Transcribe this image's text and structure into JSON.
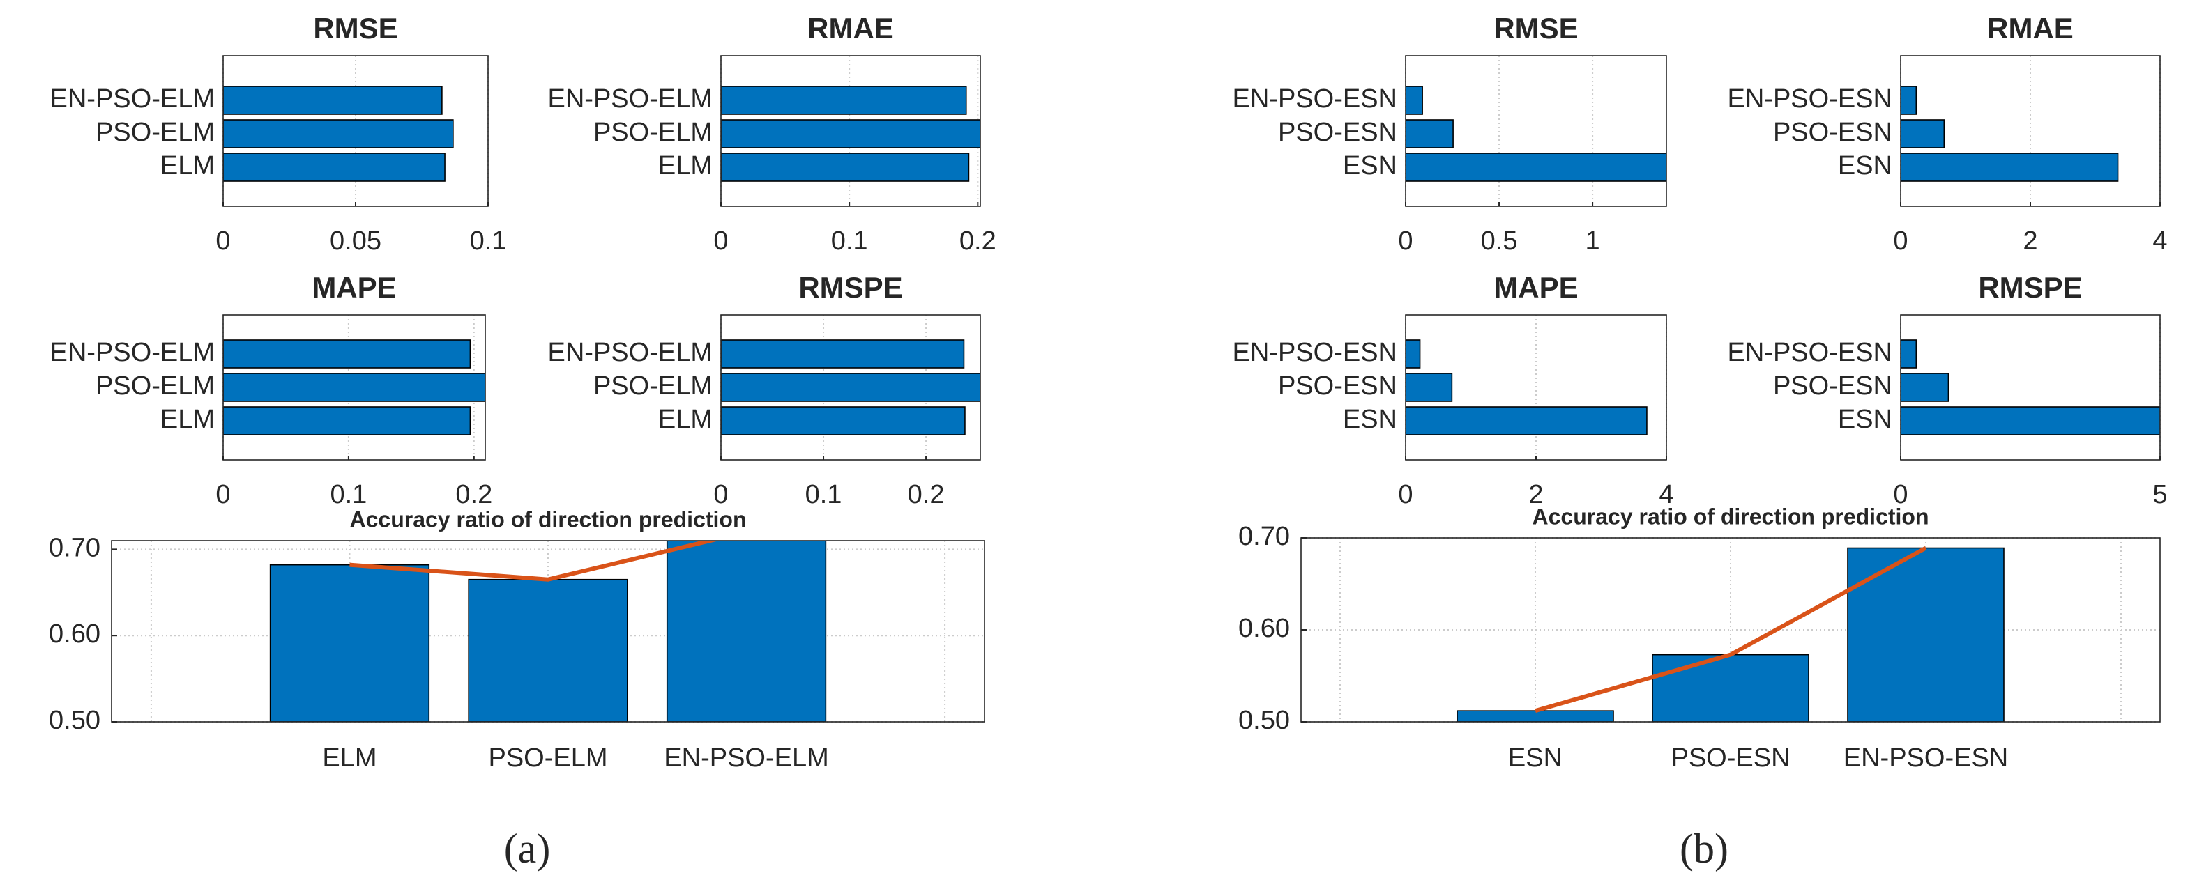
{
  "chart_data": [
    {
      "type": "barh",
      "title": "RMSE",
      "categories": [
        "ELM",
        "PSO-ELM",
        "EN-PSO-ELM"
      ],
      "series": [
        {
          "color": "#0072bd",
          "values": [
            0.0837,
            0.0868,
            0.0826
          ]
        }
      ],
      "xlim": [
        0,
        0.1
      ],
      "xticks": [
        0,
        0.05,
        0.1
      ],
      "grid": true
    },
    {
      "type": "barh",
      "title": "RMAE",
      "categories": [
        "ELM",
        "PSO-ELM",
        "EN-PSO-ELM"
      ],
      "series": [
        {
          "color": "#0072bd",
          "values": [
            0.193,
            0.21,
            0.191
          ]
        }
      ],
      "xlim": [
        0,
        0.202
      ],
      "xticks": [
        0,
        0.1,
        0.2
      ],
      "grid": true
    },
    {
      "type": "barh",
      "title": "MAPE",
      "categories": [
        "ELM",
        "PSO-ELM",
        "EN-PSO-ELM"
      ],
      "series": [
        {
          "color": "#0072bd",
          "values": [
            0.197,
            0.215,
            0.197
          ]
        }
      ],
      "xlim": [
        0,
        0.209
      ],
      "xticks": [
        0,
        0.1,
        0.2
      ],
      "grid": true
    },
    {
      "type": "barh",
      "title": "RMSPE",
      "categories": [
        "ELM",
        "PSO-ELM",
        "EN-PSO-ELM"
      ],
      "series": [
        {
          "color": "#0072bd",
          "values": [
            0.238,
            0.26,
            0.237
          ]
        }
      ],
      "xlim": [
        0,
        0.253
      ],
      "xticks": [
        0,
        0.1,
        0.2
      ],
      "grid": true
    },
    {
      "type": "barline",
      "title": "Accuracy ratio of direction prediction",
      "categories": [
        "ELM",
        "PSO-ELM",
        "EN-PSO-ELM"
      ],
      "series": [
        {
          "color": "#0072bd",
          "kind": "bar",
          "values": [
            0.682,
            0.665,
            0.72
          ]
        },
        {
          "color": "#d95319",
          "kind": "line",
          "values": [
            0.682,
            0.665,
            0.72
          ]
        }
      ],
      "ylim": [
        0.5,
        0.71
      ],
      "yticks": [
        {
          "value": 0.5,
          "label": "0.50"
        },
        {
          "value": 0.6,
          "label": "0.60"
        },
        {
          "value": 0.7,
          "label": "0.70"
        }
      ],
      "grid": true
    },
    {
      "type": "barh",
      "title": "RMSE",
      "categories": [
        "ESN",
        "PSO-ESN",
        "EN-PSO-ESN"
      ],
      "series": [
        {
          "color": "#0072bd",
          "values": [
            1.45,
            0.254,
            0.09
          ]
        }
      ],
      "xlim": [
        0,
        1.395
      ],
      "xticks": [
        0,
        0.5,
        1
      ],
      "grid": true
    },
    {
      "type": "barh",
      "title": "RMAE",
      "categories": [
        "ESN",
        "PSO-ESN",
        "EN-PSO-ESN"
      ],
      "series": [
        {
          "color": "#0072bd",
          "values": [
            3.35,
            0.67,
            0.24
          ]
        }
      ],
      "xlim": [
        0,
        4
      ],
      "xticks": [
        0,
        2,
        4
      ],
      "grid": true
    },
    {
      "type": "barh",
      "title": "MAPE",
      "categories": [
        "ESN",
        "PSO-ESN",
        "EN-PSO-ESN"
      ],
      "series": [
        {
          "color": "#0072bd",
          "values": [
            3.7,
            0.71,
            0.22
          ]
        }
      ],
      "xlim": [
        0,
        4
      ],
      "xticks": [
        0,
        2,
        4
      ],
      "grid": true
    },
    {
      "type": "barh",
      "title": "RMSPE",
      "categories": [
        "ESN",
        "PSO-ESN",
        "EN-PSO-ESN"
      ],
      "series": [
        {
          "color": "#0072bd",
          "values": [
            5.05,
            0.92,
            0.3
          ]
        }
      ],
      "xlim": [
        0,
        5
      ],
      "xticks": [
        0,
        5
      ],
      "grid": true
    },
    {
      "type": "barline",
      "title": "Accuracy ratio of direction prediction",
      "categories": [
        "ESN",
        "PSO-ESN",
        "EN-PSO-ESN"
      ],
      "series": [
        {
          "color": "#0072bd",
          "kind": "bar",
          "values": [
            0.512,
            0.573,
            0.689
          ]
        },
        {
          "color": "#d95319",
          "kind": "line",
          "values": [
            0.512,
            0.573,
            0.689
          ]
        }
      ],
      "ylim": [
        0.5,
        0.7
      ],
      "yticks": [
        {
          "value": 0.5,
          "label": "0.50"
        },
        {
          "value": 0.6,
          "label": "0.60"
        },
        {
          "value": 0.7,
          "label": "0.70"
        }
      ],
      "grid": true
    }
  ],
  "panel_labels": [
    "(a)",
    "(b)"
  ]
}
